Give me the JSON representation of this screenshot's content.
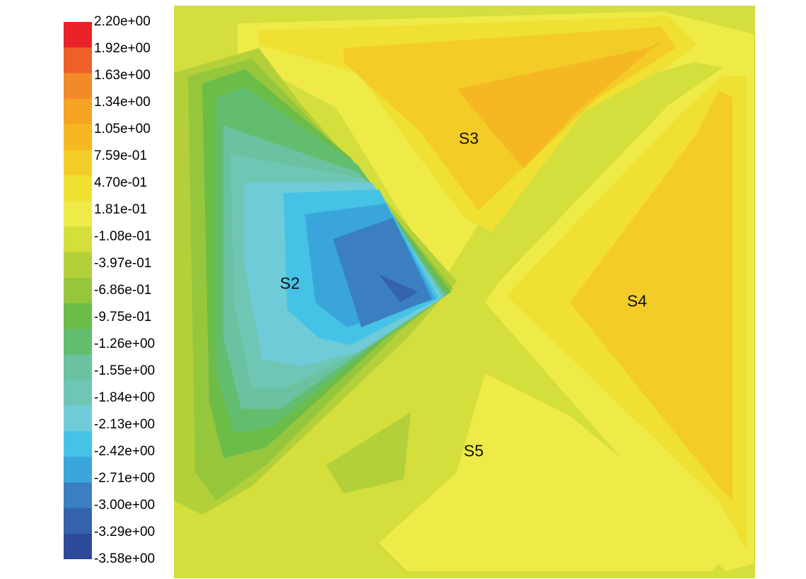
{
  "chart_data": {
    "type": "contour",
    "title": "",
    "xlabel": "",
    "ylabel": "",
    "colorbar": {
      "levels": [
        "2.20e+00",
        "1.92e+00",
        "1.63e+00",
        "1.34e+00",
        "1.05e+00",
        "7.59e-01",
        "4.70e-01",
        "1.81e-01",
        "-1.08e-01",
        "-3.97e-01",
        "-6.86e-01",
        "-9.75e-01",
        "-1.26e+00",
        "-1.55e+00",
        "-1.84e+00",
        "-2.13e+00",
        "-2.42e+00",
        "-2.71e+00",
        "-3.00e+00",
        "-3.29e+00",
        "-3.58e+00"
      ],
      "colors": [
        "#e92329",
        "#ee5f2a",
        "#f38a28",
        "#f4a323",
        "#f5b822",
        "#f3cc28",
        "#f0e032",
        "#eeea48",
        "#d4de3c",
        "#b3d03a",
        "#96c63c",
        "#6cbc48",
        "#63bd6e",
        "#6ac2a0",
        "#70c6b5",
        "#6fcbd8",
        "#45c3e6",
        "#3aa5db",
        "#3b7fc1",
        "#3563ad",
        "#2d4a9a"
      ],
      "min": -3.58,
      "max": 2.2
    },
    "regions": [
      {
        "label": "S2"
      },
      {
        "label": "S3"
      },
      {
        "label": "S4"
      },
      {
        "label": "S5"
      }
    ]
  }
}
